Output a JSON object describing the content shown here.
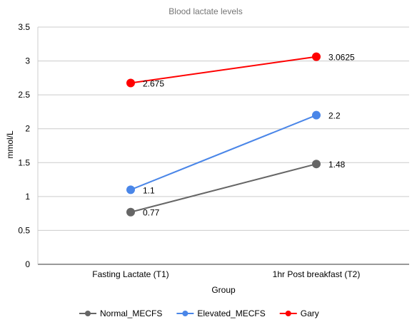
{
  "chart_data": {
    "type": "line",
    "title": "Blood lactate levels",
    "xlabel": "Group",
    "ylabel": "mmol/L",
    "categories": [
      "Fasting Lactate (T1)",
      "1hr Post breakfast (T2)"
    ],
    "ylim": [
      0,
      3.5
    ],
    "yticks": [
      "0",
      "0.5",
      "1",
      "1.5",
      "2",
      "2.5",
      "3",
      "3.5"
    ],
    "grid": "horizontal",
    "legend_position": "bottom",
    "series": [
      {
        "name": "Normal_MECFS",
        "values": [
          0.77,
          1.48
        ],
        "labels": [
          "0.77",
          "1.48"
        ],
        "color": "#666666"
      },
      {
        "name": "Elevated_MECFS",
        "values": [
          1.1,
          2.2
        ],
        "labels": [
          "1.1",
          "2.2"
        ],
        "color": "#4a86e8"
      },
      {
        "name": "Gary",
        "values": [
          2.675,
          3.0625
        ],
        "labels": [
          "2.675",
          "3.0625"
        ],
        "color": "#ff0000"
      }
    ]
  }
}
